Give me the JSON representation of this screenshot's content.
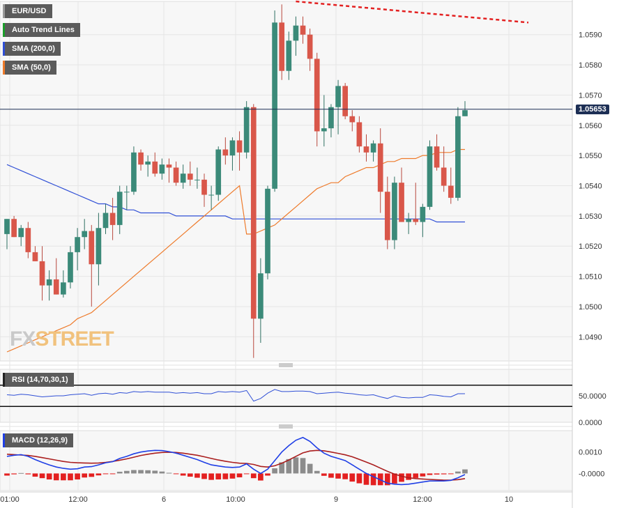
{
  "legend": {
    "symbol": "EUR/USD",
    "trend": "Auto Trend Lines",
    "sma200": "SMA (200,0)",
    "sma50": "SMA (50,0)",
    "rsi": "RSI (14,70,30,1)",
    "macd": "MACD (12,26,9)"
  },
  "watermark": {
    "left": "FX",
    "right": "STREET"
  },
  "current_price": "1.05653",
  "colors": {
    "bull": "#3b8a79",
    "bear": "#d9574a",
    "sma200": "#2f4fd6",
    "sma50": "#ee7a2a",
    "trend": "#e32020",
    "macd": "#1f3fe6",
    "signal": "#aa1e1e",
    "hist_pos": "#8c8c8c",
    "hist_neg": "#e32020",
    "rsi": "#2f4fd6"
  },
  "chart_data": [
    {
      "type": "candlestick",
      "panel": "price",
      "y_ticks": [
        "1.0590",
        "1.0580",
        "1.0570",
        "1.0560",
        "1.0550",
        "1.0540",
        "1.0530",
        "1.0520",
        "1.0510",
        "1.0500",
        "1.0490"
      ],
      "x_ticks": [
        "01:00",
        "12:00",
        "6",
        "10:00",
        "9",
        "12:00",
        "10"
      ],
      "ylim": [
        1.0482,
        1.0601
      ],
      "current_price": 1.05653,
      "candles": [
        [
          1.0524,
          1.0529,
          1.0519,
          1.0529
        ],
        [
          1.0529,
          1.053,
          1.0523,
          1.0523
        ],
        [
          1.0523,
          1.0527,
          1.052,
          1.0526
        ],
        [
          1.0526,
          1.0528,
          1.0516,
          1.0518
        ],
        [
          1.0518,
          1.052,
          1.0515,
          1.0515
        ],
        [
          1.0515,
          1.052,
          1.0502,
          1.0507
        ],
        [
          1.0507,
          1.0512,
          1.0502,
          1.0509
        ],
        [
          1.0509,
          1.0516,
          1.0504,
          1.0504
        ],
        [
          1.0504,
          1.0512,
          1.0503,
          1.0508
        ],
        [
          1.0508,
          1.052,
          1.0506,
          1.0518
        ],
        [
          1.0518,
          1.0526,
          1.0512,
          1.0523
        ],
        [
          1.0523,
          1.0529,
          1.0519,
          1.0525
        ],
        [
          1.0525,
          1.0527,
          1.05,
          1.0514
        ],
        [
          1.0514,
          1.0531,
          1.0507,
          1.0526
        ],
        [
          1.0526,
          1.0534,
          1.0524,
          1.0531
        ],
        [
          1.0531,
          1.0536,
          1.0522,
          1.0527
        ],
        [
          1.0527,
          1.054,
          1.0524,
          1.0538
        ],
        [
          1.0538,
          1.054,
          1.0532,
          1.0538
        ],
        [
          1.0538,
          1.0553,
          1.0537,
          1.0551
        ],
        [
          1.0551,
          1.0552,
          1.0545,
          1.0547
        ],
        [
          1.0547,
          1.055,
          1.0543,
          1.0548
        ],
        [
          1.0548,
          1.0551,
          1.0543,
          1.0544
        ],
        [
          1.0544,
          1.0549,
          1.0542,
          1.0547
        ],
        [
          1.0547,
          1.0549,
          1.0541,
          1.0546
        ],
        [
          1.0546,
          1.0548,
          1.054,
          1.0541
        ],
        [
          1.0541,
          1.0547,
          1.0539,
          1.0544
        ],
        [
          1.0544,
          1.0548,
          1.054,
          1.0542
        ],
        [
          1.0542,
          1.0546,
          1.0539,
          1.0542
        ],
        [
          1.0542,
          1.0544,
          1.0533,
          1.0537
        ],
        [
          1.0537,
          1.054,
          1.0532,
          1.0537
        ],
        [
          1.0537,
          1.0553,
          1.0535,
          1.0552
        ],
        [
          1.0552,
          1.0556,
          1.0547,
          1.055
        ],
        [
          1.055,
          1.0556,
          1.0545,
          1.0555
        ],
        [
          1.0555,
          1.0558,
          1.0545,
          1.0551
        ],
        [
          1.0551,
          1.0568,
          1.0549,
          1.0566
        ],
        [
          1.0566,
          1.0567,
          1.0483,
          1.0496
        ],
        [
          1.0496,
          1.0516,
          1.0488,
          1.0511
        ],
        [
          1.0511,
          1.054,
          1.0509,
          1.0539
        ],
        [
          1.0539,
          1.0598,
          1.0538,
          1.0594
        ],
        [
          1.0594,
          1.06,
          1.0575,
          1.0578
        ],
        [
          1.0578,
          1.0591,
          1.0575,
          1.0588
        ],
        [
          1.0588,
          1.0596,
          1.0583,
          1.0593
        ],
        [
          1.0593,
          1.0596,
          1.0587,
          1.059
        ],
        [
          1.059,
          1.0592,
          1.0578,
          1.0582
        ],
        [
          1.0582,
          1.0584,
          1.0553,
          1.0558
        ],
        [
          1.0558,
          1.057,
          1.0553,
          1.0559
        ],
        [
          1.0559,
          1.0567,
          1.0556,
          1.0566
        ],
        [
          1.0566,
          1.0575,
          1.0557,
          1.0573
        ],
        [
          1.0573,
          1.0574,
          1.0562,
          1.0563
        ],
        [
          1.0563,
          1.0565,
          1.0558,
          1.0561
        ],
        [
          1.0561,
          1.0563,
          1.0551,
          1.0553
        ],
        [
          1.0553,
          1.0557,
          1.0548,
          1.0551
        ],
        [
          1.0551,
          1.0555,
          1.0548,
          1.0554
        ],
        [
          1.0554,
          1.0559,
          1.0531,
          1.0538
        ],
        [
          1.0538,
          1.0543,
          1.0519,
          1.0522
        ],
        [
          1.0522,
          1.0543,
          1.0519,
          1.0541
        ],
        [
          1.0541,
          1.0546,
          1.0528,
          1.0528
        ],
        [
          1.0528,
          1.0531,
          1.0524,
          1.0529
        ],
        [
          1.0529,
          1.0541,
          1.0527,
          1.0528
        ],
        [
          1.0528,
          1.0534,
          1.0523,
          1.0533
        ],
        [
          1.0533,
          1.0555,
          1.0532,
          1.0553
        ],
        [
          1.0553,
          1.0557,
          1.0545,
          1.0546
        ],
        [
          1.0546,
          1.0553,
          1.0538,
          1.054
        ],
        [
          1.054,
          1.0546,
          1.0534,
          1.0536
        ],
        [
          1.0536,
          1.0566,
          1.0535,
          1.0563
        ],
        [
          1.0563,
          1.0568,
          1.0563,
          1.0565
        ]
      ],
      "sma200": [
        1.0547,
        1.0546,
        1.0545,
        1.0544,
        1.0543,
        1.0542,
        1.0541,
        1.054,
        1.0539,
        1.0538,
        1.0537,
        1.0536,
        1.0535,
        1.0534,
        1.0534,
        1.0533,
        1.0533,
        1.0532,
        1.0532,
        1.0531,
        1.0531,
        1.0531,
        1.0531,
        1.0531,
        1.053,
        1.053,
        1.053,
        1.053,
        1.053,
        1.053,
        1.053,
        1.053,
        1.0529,
        1.0529,
        1.0529,
        1.0529,
        1.0529,
        1.0529,
        1.0529,
        1.0529,
        1.0529,
        1.0529,
        1.0529,
        1.0529,
        1.0529,
        1.0529,
        1.0529,
        1.0529,
        1.0529,
        1.0529,
        1.0529,
        1.0529,
        1.0529,
        1.0529,
        1.0529,
        1.0529,
        1.0529,
        1.0529,
        1.0529,
        1.0529,
        1.0529,
        1.0528,
        1.0528,
        1.0528,
        1.0528,
        1.0528
      ],
      "sma50": [
        1.0485,
        1.0486,
        1.0487,
        1.0488,
        1.0489,
        1.049,
        1.0491,
        1.0492,
        1.0493,
        1.0494,
        1.0496,
        1.0497,
        1.0498,
        1.05,
        1.0502,
        1.0504,
        1.0506,
        1.0508,
        1.051,
        1.0512,
        1.0514,
        1.0516,
        1.0518,
        1.052,
        1.0522,
        1.0524,
        1.0526,
        1.0528,
        1.053,
        1.0532,
        1.0534,
        1.0536,
        1.0538,
        1.054,
        1.0524,
        1.0524,
        1.0525,
        1.0526,
        1.0527,
        1.0529,
        1.0531,
        1.0533,
        1.0535,
        1.0537,
        1.0539,
        1.054,
        1.0541,
        1.0541,
        1.0543,
        1.0544,
        1.0545,
        1.0546,
        1.0546,
        1.0547,
        1.0548,
        1.0548,
        1.0549,
        1.0549,
        1.0549,
        1.055,
        1.055,
        1.0551,
        1.0551,
        1.0551,
        1.0552,
        1.0552
      ],
      "trendline": {
        "from": [
          41,
          1.0601
        ],
        "to": [
          74,
          1.0594
        ]
      }
    },
    {
      "type": "line",
      "panel": "rsi",
      "name": "RSI (14,70,30,1)",
      "y_ticks": [
        "50.0000",
        "0.0000"
      ],
      "ylim": [
        0,
        100
      ],
      "levels": [
        70,
        30
      ],
      "values": [
        52,
        51,
        53,
        52,
        50,
        48,
        49,
        50,
        50,
        52,
        53,
        54,
        51,
        54,
        55,
        53,
        56,
        55,
        58,
        57,
        58,
        57,
        57,
        57,
        55,
        56,
        55,
        56,
        54,
        54,
        58,
        57,
        58,
        57,
        60,
        40,
        45,
        55,
        62,
        58,
        58,
        59,
        59,
        58,
        54,
        55,
        56,
        57,
        55,
        54,
        52,
        51,
        52,
        48,
        45,
        50,
        47,
        46,
        47,
        47,
        52,
        51,
        49,
        48,
        54,
        54
      ]
    },
    {
      "type": "bar+line",
      "panel": "macd",
      "name": "MACD (12,26,9)",
      "y_ticks": [
        "0.0010",
        "-0.0000"
      ],
      "ylim": [
        -0.0008,
        0.002
      ],
      "macd": [
        0.0008,
        0.00085,
        0.00088,
        0.0008,
        0.00065,
        0.00052,
        0.0004,
        0.0003,
        0.00024,
        0.0002,
        0.00022,
        0.0003,
        0.00032,
        0.0004,
        0.0005,
        0.00055,
        0.0007,
        0.0008,
        0.00092,
        0.001,
        0.00105,
        0.00108,
        0.00107,
        0.00102,
        0.00095,
        0.00085,
        0.00075,
        0.00065,
        0.00052,
        0.0004,
        0.00035,
        0.0003,
        0.00028,
        0.0003,
        0.00045,
        0.0002,
        0.0,
        0.0002,
        0.0006,
        0.001,
        0.0013,
        0.00155,
        0.00168,
        0.0015,
        0.0012,
        0.00095,
        0.0008,
        0.0007,
        0.0006,
        0.0004,
        0.0002,
        0.0,
        -0.00015,
        -0.0003,
        -0.00045,
        -0.0005,
        -0.00052,
        -0.0005,
        -0.00045,
        -0.0004,
        -0.00035,
        -0.00035,
        -0.00035,
        -0.00032,
        -0.0002,
        -5e-05
      ],
      "signal": [
        0.0009,
        0.00088,
        0.00086,
        0.00084,
        0.0008,
        0.00074,
        0.00068,
        0.00062,
        0.00056,
        0.00052,
        0.0005,
        0.00049,
        0.00048,
        0.00049,
        0.00052,
        0.00056,
        0.00062,
        0.00068,
        0.00076,
        0.00084,
        0.0009,
        0.00095,
        0.00098,
        0.00099,
        0.00098,
        0.00095,
        0.0009,
        0.00085,
        0.00078,
        0.0007,
        0.00063,
        0.00057,
        0.00052,
        0.00048,
        0.00047,
        0.00042,
        0.00033,
        0.0003,
        0.00036,
        0.00048,
        0.00063,
        0.0008,
        0.00096,
        0.00105,
        0.00108,
        0.00106,
        0.001,
        0.00094,
        0.00087,
        0.00078,
        0.00066,
        0.00053,
        0.0004,
        0.00025,
        0.0001,
        -3e-05,
        -0.00013,
        -0.0002,
        -0.00024,
        -0.00026,
        -0.00028,
        -0.0003,
        -0.00031,
        -0.00031,
        -0.00029,
        -0.00024
      ],
      "histogram": [
        -0.0001,
        -4e-05,
        2e-05,
        -4e-05,
        -0.00015,
        -0.00022,
        -0.00028,
        -0.00032,
        -0.00032,
        -0.00032,
        -0.00028,
        -0.00019,
        -0.00016,
        -9e-05,
        -2e-05,
        -1e-05,
        8e-05,
        0.00012,
        0.00016,
        0.00016,
        0.00015,
        0.00013,
        9e-05,
        3e-05,
        -3e-05,
        -0.0001,
        -0.00015,
        -0.0002,
        -0.00026,
        -0.0003,
        -0.00028,
        -0.00027,
        -0.00024,
        -0.00018,
        -2e-05,
        -0.00022,
        -0.00033,
        -0.0001,
        0.00024,
        0.00052,
        0.00067,
        0.00075,
        0.00072,
        0.00045,
        0.00012,
        -0.00011,
        -0.0002,
        -0.00024,
        -0.00027,
        -0.00038,
        -0.00046,
        -0.00053,
        -0.00055,
        -0.00055,
        -0.00055,
        -0.00047,
        -0.00039,
        -0.0003,
        -0.00021,
        -0.00014,
        -7e-05,
        -5e-05,
        -4e-05,
        -1e-05,
        9e-05,
        0.00019
      ]
    }
  ]
}
